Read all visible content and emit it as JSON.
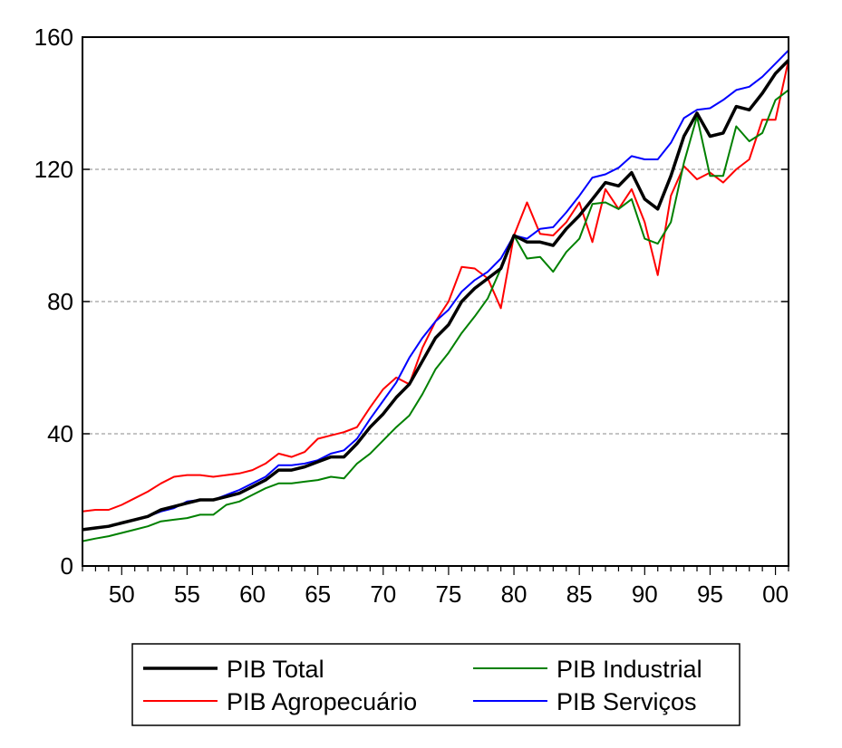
{
  "chart_data": {
    "type": "line",
    "title": "",
    "xlabel": "",
    "ylabel": "",
    "x": [
      1947,
      1948,
      1949,
      1950,
      1951,
      1952,
      1953,
      1954,
      1955,
      1956,
      1957,
      1958,
      1959,
      1960,
      1961,
      1962,
      1963,
      1964,
      1965,
      1966,
      1967,
      1968,
      1969,
      1970,
      1971,
      1972,
      1973,
      1974,
      1975,
      1976,
      1977,
      1978,
      1979,
      1980,
      1981,
      1982,
      1983,
      1984,
      1985,
      1986,
      1987,
      1988,
      1989,
      1990,
      1991,
      1992,
      1993,
      1994,
      1995,
      1996,
      1997,
      1998,
      1999,
      2000,
      2001
    ],
    "xlim": [
      1947,
      2001
    ],
    "ylim": [
      0,
      160
    ],
    "y_ticks": [
      0,
      40,
      80,
      120,
      160
    ],
    "y_tick_labels": [
      "0",
      "40",
      "80",
      "120",
      "160"
    ],
    "x_tick_years": [
      1950,
      1955,
      1960,
      1965,
      1970,
      1975,
      1980,
      1985,
      1990,
      1995,
      2000
    ],
    "x_tick_labels": [
      "50",
      "55",
      "60",
      "65",
      "70",
      "75",
      "80",
      "85",
      "90",
      "95",
      "00"
    ],
    "grid": "horizontal dashed",
    "legend_position": "bottom, outside plot area",
    "series": [
      {
        "name": "PIB Total",
        "color": "#000000",
        "values": [
          11,
          11.5,
          12,
          13,
          14,
          15,
          17,
          18,
          19,
          20,
          20,
          21,
          22,
          24,
          26,
          29,
          29,
          30,
          31.5,
          33,
          33,
          37,
          42,
          46,
          51,
          55,
          62,
          69,
          73,
          80,
          84,
          87,
          90,
          100,
          98,
          98,
          97,
          102,
          106,
          111,
          116,
          115,
          119,
          111,
          108,
          118,
          130,
          137,
          130,
          131,
          139,
          138,
          143,
          149,
          153
        ]
      },
      {
        "name": "PIB Agropecuário",
        "color": "#ff0000",
        "values": [
          16.5,
          17,
          17,
          18.5,
          20.5,
          22.5,
          25,
          27,
          27.5,
          27.5,
          27,
          27.5,
          28,
          29,
          31,
          34,
          33,
          34.5,
          38.5,
          39.5,
          40.5,
          42,
          48,
          53.5,
          57,
          55,
          66,
          74,
          80,
          90.5,
          90,
          87,
          78,
          100,
          110,
          100.5,
          100,
          104,
          110,
          98,
          114,
          108,
          114,
          104,
          88,
          112,
          121,
          117,
          119,
          116,
          120,
          123,
          135,
          135,
          153
        ]
      },
      {
        "name": "PIB Industrial",
        "color": "#008000",
        "values": [
          7.5,
          8.3,
          9,
          10,
          11,
          12,
          13.5,
          14,
          14.5,
          15.5,
          15.5,
          18.5,
          19.5,
          21.5,
          23.5,
          25,
          25,
          25.5,
          26,
          27,
          26.5,
          31,
          34,
          38,
          42,
          45.5,
          52,
          59.5,
          64.5,
          70.5,
          75.5,
          81,
          90,
          100,
          93,
          93.5,
          89,
          95,
          99,
          109.5,
          110,
          108,
          111,
          99,
          97.5,
          104,
          122,
          136,
          118,
          118,
          133,
          128.5,
          131,
          141,
          144
        ]
      },
      {
        "name": "PIB Serviços",
        "color": "#0000ff",
        "values": [
          11,
          11.5,
          12,
          13,
          14,
          15,
          16.5,
          17.5,
          19.5,
          20,
          20,
          21.5,
          23,
          25,
          27,
          30.5,
          30.5,
          31,
          32,
          34,
          35,
          38.5,
          44.5,
          50,
          55.5,
          63,
          69,
          74,
          77.5,
          83,
          86.5,
          89,
          93,
          100,
          99,
          102,
          102.5,
          107,
          112,
          117.5,
          118.5,
          120.5,
          124,
          123,
          123,
          128,
          135.5,
          138,
          138.5,
          141,
          144,
          145,
          148,
          152,
          156
        ]
      }
    ]
  }
}
